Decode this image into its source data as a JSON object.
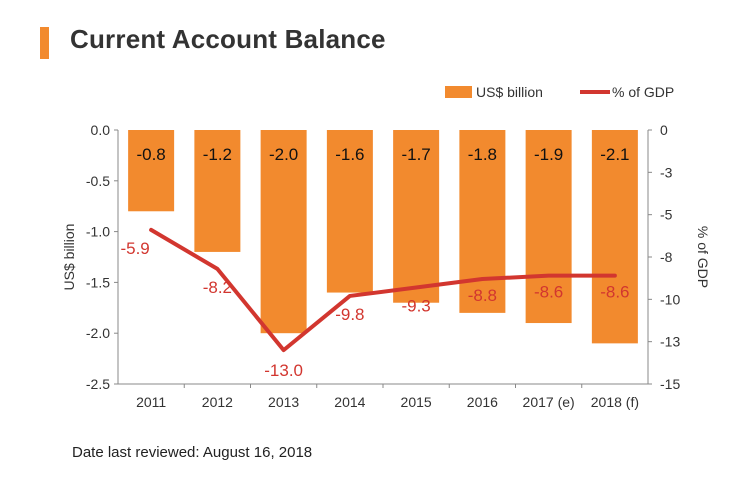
{
  "chart_data": {
    "type": "bar",
    "title": "Current Account Balance",
    "categories": [
      "2011",
      "2012",
      "2013",
      "2014",
      "2015",
      "2016",
      "2017 (e)",
      "2018 (f)"
    ],
    "series": [
      {
        "name": "US$ billion",
        "type": "bar",
        "axis": "left",
        "values": [
          -0.8,
          -1.2,
          -2.0,
          -1.6,
          -1.7,
          -1.8,
          -1.9,
          -2.1
        ],
        "labels": [
          "-0.8",
          "-1.2",
          "-2.0",
          "-1.6",
          "-1.7",
          "-1.8",
          "-1.9",
          "-2.1"
        ],
        "color": "#f28a2e"
      },
      {
        "name": "% of GDP",
        "type": "line",
        "axis": "right",
        "values": [
          -5.9,
          -8.2,
          -13.0,
          -9.8,
          -9.3,
          -8.8,
          -8.6,
          -8.6
        ],
        "labels": [
          "-5.9",
          "-8.2",
          "-13.0",
          "-9.8",
          "-9.3",
          "-8.8",
          "-8.6",
          "-8.6"
        ],
        "color": "#d2362f"
      }
    ],
    "ylabel": "US$ billion",
    "y2label": "% of GDP",
    "ylim": [
      -2.5,
      0
    ],
    "y2lim": [
      -15,
      0
    ],
    "yticks": [
      "0.0",
      "-0.5",
      "-1.0",
      "-1.5",
      "-2.0",
      "-2.5"
    ],
    "y2ticks": [
      "0",
      "-3",
      "-5",
      "-8",
      "-10",
      "-13",
      "-15"
    ],
    "y2tick_values": [
      0,
      -2.5,
      -5,
      -7.5,
      -10,
      -12.5,
      -15
    ],
    "grid": false,
    "legend_position": "top-right"
  },
  "footer": "Date last reviewed: August 16, 2018"
}
